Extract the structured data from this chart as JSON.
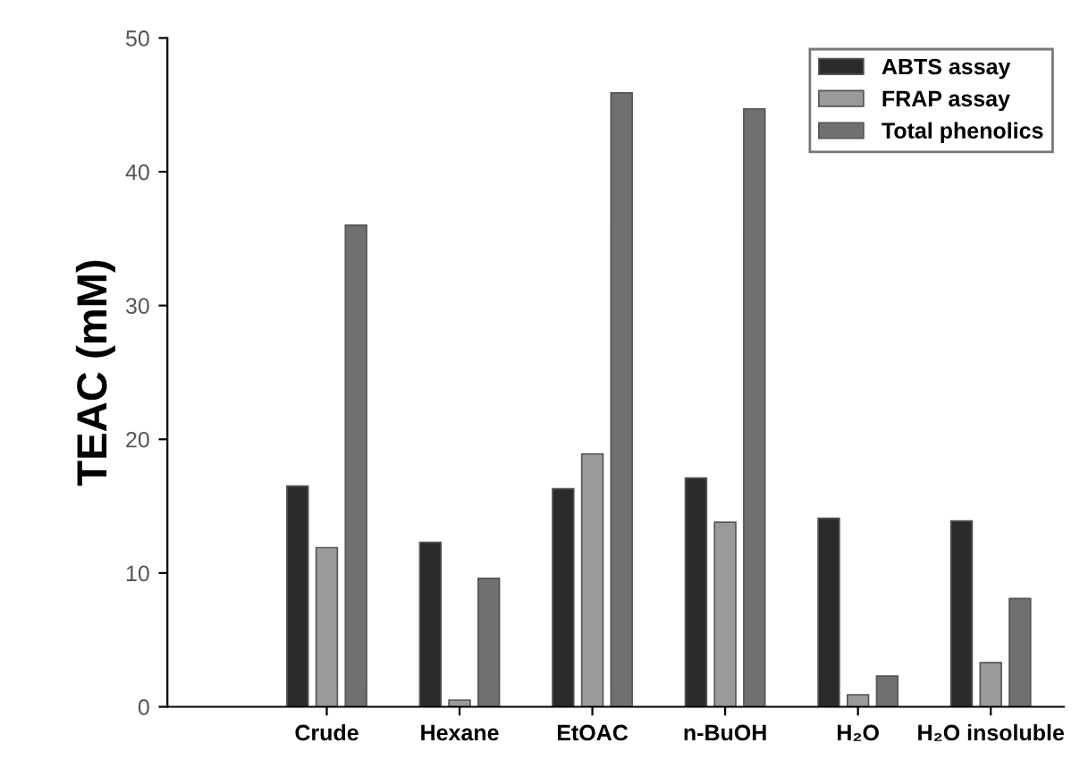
{
  "chart_data": {
    "type": "bar",
    "ylabel": "TEAC (mM)",
    "categories": [
      "Crude",
      "Hexane",
      "EtOAC",
      "n-BuOH",
      "H₂O",
      "H₂O insoluble"
    ],
    "series": [
      {
        "name": "ABTS assay",
        "color": "#2b2b2b",
        "values": [
          16.5,
          12.3,
          16.3,
          17.1,
          14.1,
          13.9
        ]
      },
      {
        "name": "FRAP assay",
        "color": "#9a9a9a",
        "values": [
          11.9,
          0.5,
          18.9,
          13.8,
          0.9,
          3.3
        ]
      },
      {
        "name": "Total phenolics",
        "color": "#707070",
        "values": [
          36.0,
          9.6,
          45.9,
          44.7,
          2.3,
          8.1
        ]
      }
    ],
    "ylim": [
      0,
      50
    ],
    "yticks": [
      0,
      10,
      20,
      30,
      40,
      50
    ],
    "grid": false,
    "legend": "top right"
  }
}
